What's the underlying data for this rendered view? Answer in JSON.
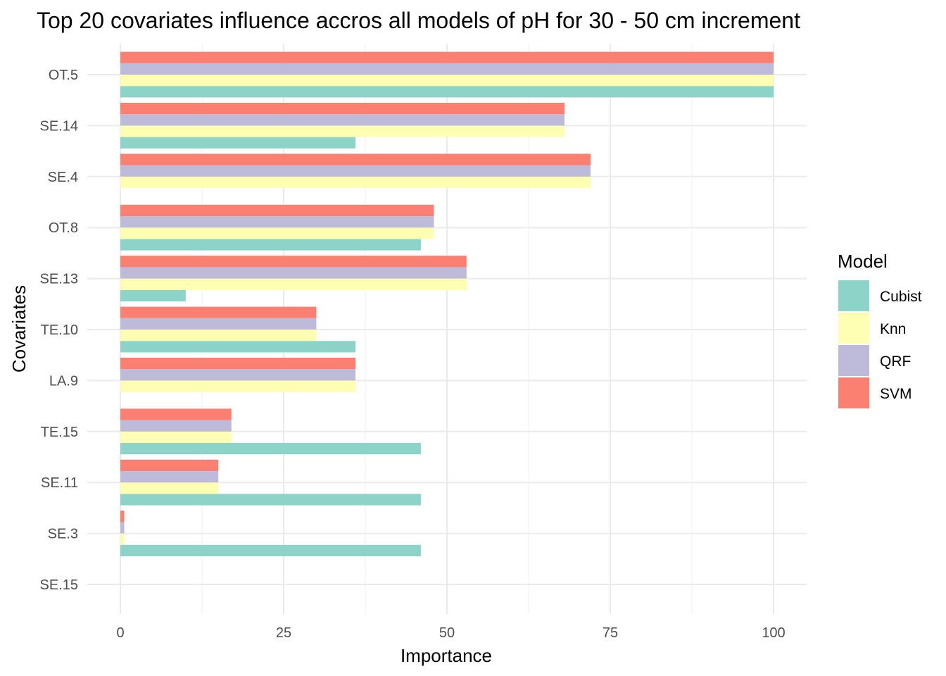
{
  "chart_data": {
    "type": "bar",
    "orientation": "horizontal",
    "title": "Top 20 covariates influence accros all models of pH for 30 - 50 cm increment",
    "xlabel": "Importance",
    "ylabel": "Covariates",
    "xlim": [
      0,
      105
    ],
    "xticks": [
      0,
      25,
      50,
      75,
      100
    ],
    "grid": true,
    "legend": {
      "title": "Model",
      "placement": "right"
    },
    "categories": [
      "OT.5",
      "SE.14",
      "SE.4",
      "OT.8",
      "SE.13",
      "TE.10",
      "LA.9",
      "TE.15",
      "SE.11",
      "SE.3",
      "SE.15"
    ],
    "series": [
      {
        "name": "Cubist",
        "color": "#8dd3c7",
        "values": [
          100,
          36,
          0,
          46,
          10,
          36,
          0,
          46,
          46,
          46,
          0
        ]
      },
      {
        "name": "Knn",
        "color": "#ffffb3",
        "values": [
          100,
          68,
          72,
          48,
          53,
          30,
          36,
          17,
          15,
          0.6,
          0
        ]
      },
      {
        "name": "QRF",
        "color": "#bebada",
        "values": [
          100,
          68,
          72,
          48,
          53,
          30,
          36,
          17,
          15,
          0.6,
          0
        ]
      },
      {
        "name": "SVM",
        "color": "#fb8072",
        "values": [
          100,
          68,
          72,
          48,
          53,
          30,
          36,
          17,
          15,
          0.6,
          0
        ]
      }
    ]
  }
}
